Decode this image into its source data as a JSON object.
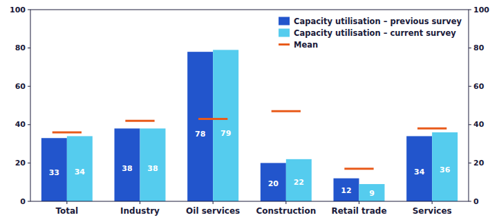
{
  "chart_data": {
    "type": "bar",
    "categories": [
      "Total",
      "Industry",
      "Oil services",
      "Construction",
      "Retail trade",
      "Services"
    ],
    "series": [
      {
        "name": "Capacity utilisation – previous survey",
        "color": "#2255cc",
        "values": [
          33,
          38,
          78,
          20,
          12,
          34
        ],
        "type": "bar",
        "data_labels": true
      },
      {
        "name": "Capacity utilisation – current survey",
        "color": "#55ccee",
        "values": [
          34,
          38,
          79,
          22,
          9,
          36
        ],
        "type": "bar",
        "data_labels": true
      },
      {
        "name": "Mean",
        "color": "#e85a1a",
        "values": [
          36,
          42,
          43,
          47,
          17,
          38
        ],
        "type": "mean",
        "data_labels": false
      }
    ],
    "ylim": [
      0,
      100
    ],
    "yticks": [
      0,
      20,
      40,
      60,
      80,
      100
    ],
    "y2lim": [
      0,
      100
    ],
    "y2ticks": [
      0,
      20,
      40,
      60,
      80,
      100
    ],
    "grid": false,
    "legend": "upper right"
  }
}
